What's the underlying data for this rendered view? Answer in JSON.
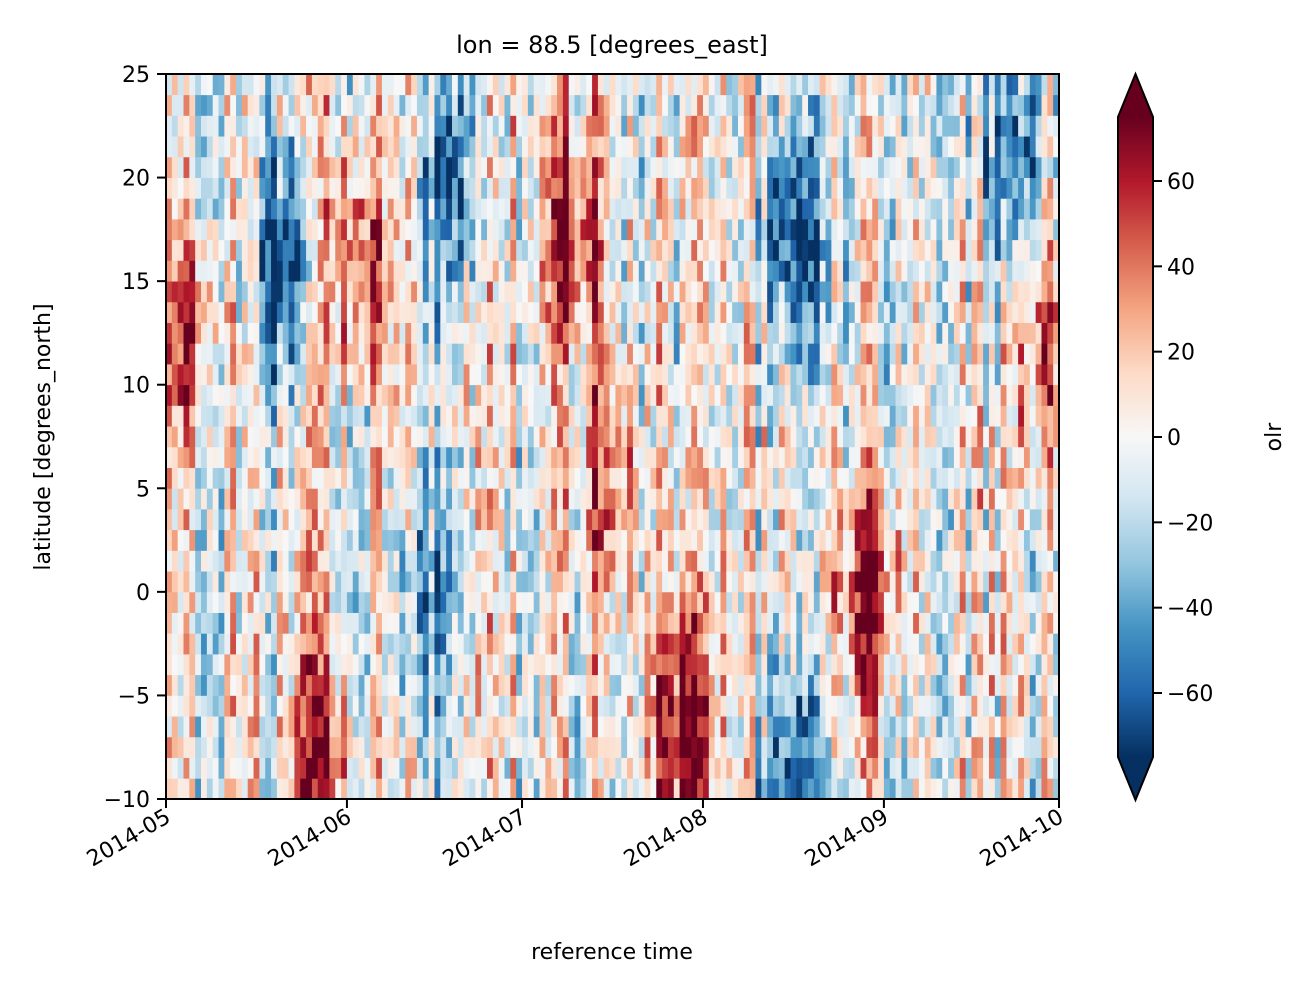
{
  "chart_data": {
    "type": "heatmap",
    "title": "lon = 88.5 [degrees_east]",
    "xlabel": "reference time",
    "ylabel": "latitude [degrees_north]",
    "colorbar_label": "olr",
    "x_range": [
      "2014-05-01",
      "2014-10-01"
    ],
    "y_range": [
      -10,
      25
    ],
    "x_ticks": [
      "2014-05",
      "2014-06",
      "2014-07",
      "2014-08",
      "2014-09",
      "2014-10"
    ],
    "y_ticks": [
      "−10",
      "−5",
      "0",
      "5",
      "10",
      "15",
      "20",
      "25"
    ],
    "colorbar_ticks": [
      "−60",
      "−40",
      "−20",
      "0",
      "20",
      "40",
      "60"
    ],
    "color_range": [
      -75,
      75
    ],
    "colorbar_extend": "both",
    "colormap": "RdBu_r",
    "colors": [
      "#053061",
      "#2166ac",
      "#4393c3",
      "#92c5de",
      "#d1e5f0",
      "#f7f7f7",
      "#fddbc7",
      "#f4a582",
      "#d6604d",
      "#b2182b",
      "#67001f"
    ],
    "grid": false,
    "time_step_days": 1,
    "lat_step_degrees": 1,
    "anomaly_features": [
      {
        "t": "2014-05-21",
        "lat": 16,
        "olr": -70
      },
      {
        "t": "2014-06-02",
        "lat": 16,
        "olr": 65
      },
      {
        "t": "2014-06-18",
        "lat": 20,
        "olr": -55
      },
      {
        "t": "2014-07-09",
        "lat": 17,
        "olr": 65
      },
      {
        "t": "2014-07-28",
        "lat": -6,
        "olr": 75
      },
      {
        "t": "2014-07-15",
        "lat": 5,
        "olr": 45
      },
      {
        "t": "2014-08-16",
        "lat": 17,
        "olr": -70
      },
      {
        "t": "2014-08-29",
        "lat": 0,
        "olr": 70
      },
      {
        "t": "2014-09-22",
        "lat": 21,
        "olr": -60
      },
      {
        "t": "2014-09-29",
        "lat": 12,
        "olr": 55
      },
      {
        "t": "2014-08-16",
        "lat": -9,
        "olr": -60
      },
      {
        "t": "2014-05-27",
        "lat": -8,
        "olr": 55
      },
      {
        "t": "2014-06-14",
        "lat": 0,
        "olr": -45
      },
      {
        "t": "2014-05-04",
        "lat": 12,
        "olr": 55
      }
    ]
  }
}
